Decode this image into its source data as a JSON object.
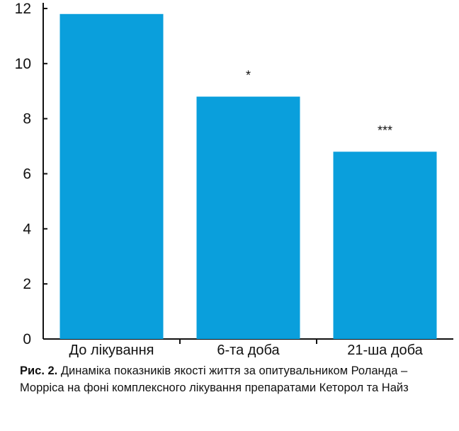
{
  "chart_data": {
    "type": "bar",
    "categories": [
      "До лікування",
      "6-та доба",
      "21-ша доба"
    ],
    "values": [
      11.8,
      8.8,
      6.8
    ],
    "annotations": [
      "",
      "*",
      "***"
    ],
    "ylim": [
      0,
      12
    ],
    "yticks": [
      0,
      2,
      4,
      6,
      8,
      10,
      12
    ],
    "xlabel": "",
    "ylabel": "",
    "grid": false,
    "bar_color": "#0a9fdc",
    "axis_color": "#111111"
  },
  "caption": {
    "label": "Рис. 2.",
    "text": " Динаміка показників якості життя за опитувальником Роланда – Морріса на фоні комплексного лікування препаратами Кеторол та Найз"
  }
}
